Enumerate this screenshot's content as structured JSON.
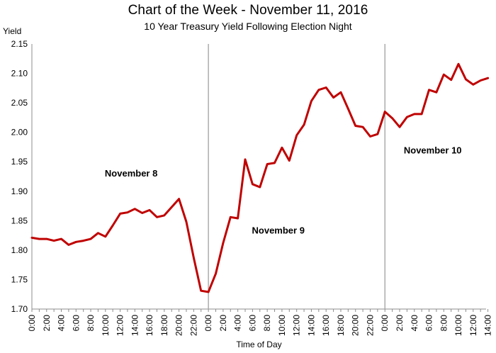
{
  "chart_data": {
    "type": "line",
    "title": "Chart of the Week - November 11, 2016",
    "subtitle": "10 Year Treasury Yield Following Election Night",
    "xlabel": "Time of Day",
    "ylabel": "Yield",
    "ylim": [
      1.7,
      2.15
    ],
    "yticks": [
      "1.70",
      "1.75",
      "1.80",
      "1.85",
      "1.90",
      "1.95",
      "2.00",
      "2.05",
      "2.10",
      "2.15"
    ],
    "grid": false,
    "line_color": "#c00000",
    "divider_color": "#a6a6a6",
    "x": [
      "0:00",
      "1:00",
      "2:00",
      "3:00",
      "4:00",
      "5:00",
      "6:00",
      "7:00",
      "8:00",
      "9:00",
      "10:00",
      "11:00",
      "12:00",
      "13:00",
      "14:00",
      "15:00",
      "16:00",
      "17:00",
      "18:00",
      "19:00",
      "20:00",
      "21:00",
      "22:00",
      "23:00",
      "0:00",
      "1:00",
      "2:00",
      "3:00",
      "4:00",
      "5:00",
      "6:00",
      "7:00",
      "8:00",
      "9:00",
      "10:00",
      "11:00",
      "12:00",
      "13:00",
      "14:00",
      "15:00",
      "16:00",
      "17:00",
      "18:00",
      "19:00",
      "20:00",
      "21:00",
      "22:00",
      "23:00",
      "0:00",
      "1:00",
      "2:00",
      "3:00",
      "4:00",
      "5:00",
      "6:00",
      "7:00",
      "8:00",
      "9:00",
      "10:00",
      "11:00",
      "12:00",
      "13:00",
      "14:00"
    ],
    "tick_labels": [
      "0:00",
      "2:00",
      "4:00",
      "6:00",
      "8:00",
      "10:00",
      "12:00",
      "14:00",
      "16:00",
      "18:00",
      "20:00",
      "22:00",
      "0:00",
      "2:00",
      "4:00",
      "6:00",
      "8:00",
      "10:00",
      "12:00",
      "14:00",
      "16:00",
      "18:00",
      "20:00",
      "22:00",
      "0:00",
      "2:00",
      "4:00",
      "6:00",
      "8:00",
      "10:00",
      "12:00",
      "14:00"
    ],
    "series": [
      {
        "values": [
          1.821,
          1.819,
          1.819,
          1.816,
          1.819,
          1.809,
          1.814,
          1.816,
          1.819,
          1.829,
          1.823,
          1.842,
          1.862,
          1.864,
          1.87,
          1.863,
          1.868,
          1.856,
          1.859,
          1.873,
          1.887,
          1.848,
          1.787,
          1.731,
          1.729,
          1.76,
          1.812,
          1.856,
          1.854,
          1.954,
          1.912,
          1.907,
          1.946,
          1.948,
          1.974,
          1.952,
          1.995,
          2.013,
          2.053,
          2.072,
          2.076,
          2.059,
          2.068,
          2.04,
          2.011,
          2.009,
          1.993,
          1.997,
          2.035,
          2.024,
          2.009,
          2.026,
          2.031,
          2.031,
          2.072,
          2.068,
          2.098,
          2.089,
          2.116,
          2.09,
          2.081,
          2.088,
          2.092
        ]
      }
    ],
    "day_dividers_at_hour_index": [
      24,
      48
    ],
    "annotations": [
      {
        "text": "November 8",
        "x_index": 13.5,
        "y": 1.925
      },
      {
        "text": "November 9",
        "x_index": 33.5,
        "y": 1.828
      },
      {
        "text": "November 10",
        "x_index": 54.5,
        "y": 1.964
      }
    ]
  }
}
